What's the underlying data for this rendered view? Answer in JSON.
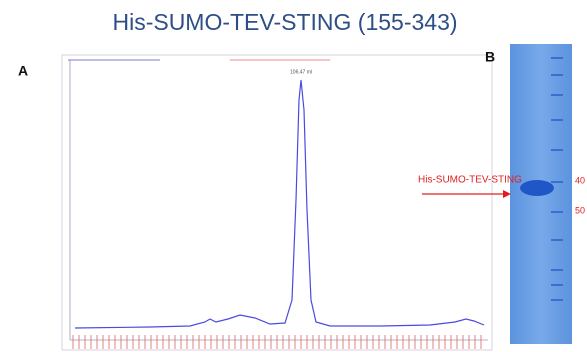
{
  "title": "His-SUMO-TEV-STING (155-343)",
  "panel_a": {
    "label": "A",
    "peak_label": "106.47 ml"
  },
  "panel_b": {
    "label": "B",
    "band_label": "His-SUMO-TEV-STING",
    "markers": [
      "40",
      "50"
    ]
  }
}
